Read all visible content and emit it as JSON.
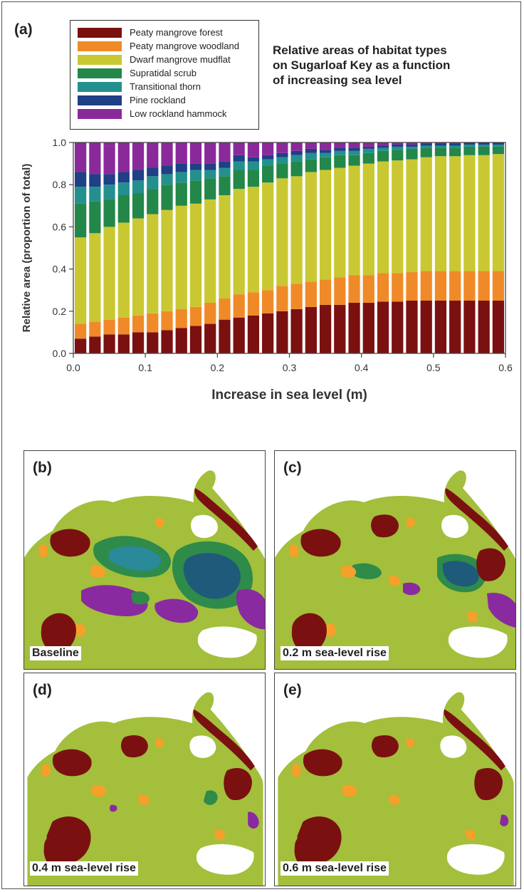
{
  "panel_a": {
    "label": "(a)",
    "title_lines": [
      "Relative areas of habitat types",
      "on Sugarloaf Key as a function",
      "of increasing sea level"
    ],
    "legend": [
      {
        "name": "Peaty mangrove forest",
        "color": "#7a1010"
      },
      {
        "name": "Peaty mangrove woodland",
        "color": "#f08a28"
      },
      {
        "name": "Dwarf mangrove mudflat",
        "color": "#c9c832"
      },
      {
        "name": "Supratidal scrub",
        "color": "#23874a"
      },
      {
        "name": "Transitional thorn",
        "color": "#23908e"
      },
      {
        "name": "Pine rockland",
        "color": "#1f3f86"
      },
      {
        "name": "Low rockland hammock",
        "color": "#8a2a9a"
      }
    ]
  },
  "chart_data": {
    "type": "bar",
    "stacked": true,
    "title": "Relative areas of habitat types on Sugarloaf Key as a function of increasing sea level",
    "xlabel": "Increase in sea level (m)",
    "ylabel": "Relative area (proportion of total)",
    "xlim": [
      0,
      0.6
    ],
    "ylim": [
      0,
      1.0
    ],
    "xticks": [
      "0.0",
      "0.1",
      "0.2",
      "0.3",
      "0.4",
      "0.5",
      "0.6"
    ],
    "yticks": [
      "0.0",
      "0.2",
      "0.4",
      "0.6",
      "0.8",
      "1.0"
    ],
    "x": [
      0.0,
      0.02,
      0.04,
      0.06,
      0.08,
      0.1,
      0.12,
      0.14,
      0.16,
      0.18,
      0.2,
      0.22,
      0.24,
      0.26,
      0.28,
      0.3,
      0.32,
      0.34,
      0.36,
      0.38,
      0.4,
      0.42,
      0.44,
      0.46,
      0.48,
      0.5,
      0.52,
      0.54,
      0.56,
      0.58
    ],
    "series": [
      {
        "name": "Peaty mangrove forest",
        "color": "#7a1010",
        "values": [
          0.07,
          0.08,
          0.09,
          0.09,
          0.1,
          0.1,
          0.11,
          0.12,
          0.13,
          0.14,
          0.16,
          0.17,
          0.18,
          0.19,
          0.2,
          0.21,
          0.22,
          0.23,
          0.23,
          0.24,
          0.24,
          0.245,
          0.245,
          0.25,
          0.25,
          0.25,
          0.25,
          0.25,
          0.25,
          0.25
        ]
      },
      {
        "name": "Peaty mangrove woodland",
        "color": "#f08a28",
        "values": [
          0.07,
          0.07,
          0.07,
          0.08,
          0.08,
          0.09,
          0.09,
          0.09,
          0.09,
          0.1,
          0.1,
          0.11,
          0.11,
          0.11,
          0.12,
          0.12,
          0.12,
          0.12,
          0.13,
          0.13,
          0.13,
          0.135,
          0.135,
          0.135,
          0.14,
          0.14,
          0.14,
          0.14,
          0.14,
          0.14
        ]
      },
      {
        "name": "Dwarf mangrove mudflat",
        "color": "#c9c832",
        "values": [
          0.41,
          0.42,
          0.44,
          0.45,
          0.46,
          0.47,
          0.48,
          0.49,
          0.49,
          0.49,
          0.49,
          0.5,
          0.5,
          0.51,
          0.51,
          0.51,
          0.52,
          0.52,
          0.52,
          0.52,
          0.53,
          0.53,
          0.535,
          0.535,
          0.54,
          0.545,
          0.545,
          0.55,
          0.55,
          0.555
        ]
      },
      {
        "name": "Supratidal scrub",
        "color": "#23874a",
        "values": [
          0.16,
          0.15,
          0.13,
          0.13,
          0.12,
          0.12,
          0.12,
          0.11,
          0.11,
          0.1,
          0.09,
          0.09,
          0.08,
          0.08,
          0.07,
          0.07,
          0.06,
          0.06,
          0.06,
          0.05,
          0.05,
          0.05,
          0.05,
          0.05,
          0.045,
          0.04,
          0.04,
          0.04,
          0.04,
          0.035
        ]
      },
      {
        "name": "Transitional thorn",
        "color": "#23908e",
        "values": [
          0.08,
          0.07,
          0.07,
          0.06,
          0.06,
          0.06,
          0.05,
          0.05,
          0.05,
          0.04,
          0.04,
          0.04,
          0.04,
          0.03,
          0.03,
          0.03,
          0.03,
          0.02,
          0.02,
          0.02,
          0.02,
          0.015,
          0.015,
          0.01,
          0.01,
          0.01,
          0.01,
          0.01,
          0.01,
          0.01
        ]
      },
      {
        "name": "Pine rockland",
        "color": "#1f3f86",
        "values": [
          0.07,
          0.06,
          0.05,
          0.05,
          0.05,
          0.04,
          0.04,
          0.04,
          0.03,
          0.03,
          0.03,
          0.03,
          0.02,
          0.02,
          0.02,
          0.02,
          0.02,
          0.015,
          0.015,
          0.015,
          0.01,
          0.01,
          0.01,
          0.01,
          0.01,
          0.01,
          0.01,
          0.01,
          0.01,
          0.01
        ]
      },
      {
        "name": "Low rockland hammock",
        "color": "#8a2a9a",
        "values": [
          0.14,
          0.15,
          0.13,
          0.14,
          0.13,
          0.12,
          0.11,
          0.1,
          0.1,
          0.1,
          0.09,
          0.06,
          0.07,
          0.06,
          0.05,
          0.04,
          0.03,
          0.03,
          0.025,
          0.025,
          0.02,
          0.015,
          0.01,
          0.01,
          0.005,
          0.005,
          0.005,
          0.0,
          0.0,
          0.0
        ]
      }
    ],
    "grid": false,
    "legend": "top-left"
  },
  "maps": [
    {
      "label": "(b)",
      "caption": "Baseline"
    },
    {
      "label": "(c)",
      "caption": "0.2 m sea-level rise"
    },
    {
      "label": "(d)",
      "caption": "0.4 m sea-level rise"
    },
    {
      "label": "(e)",
      "caption": "0.6 m sea-level rise"
    }
  ],
  "map_colors": {
    "mudflat": "#a3bf3c",
    "forest": "#7a1010",
    "woodland": "#f5a02a",
    "scrub": "#2e8b4a",
    "thorn": "#2a8a9a",
    "pine": "#1f5a7a",
    "hammock": "#8a2aa0"
  }
}
